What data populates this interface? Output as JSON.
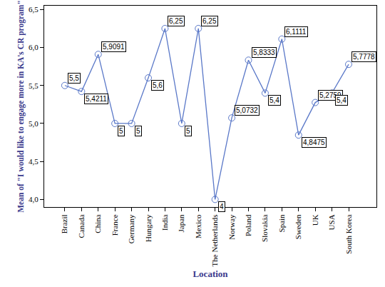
{
  "chart_data": {
    "type": "line",
    "x_label": "Location",
    "y_label": "Mean of \"I would like to engage more in KA's CR program\"",
    "categories": [
      "Brazil",
      "Canada",
      "China",
      "France",
      "Germany",
      "Hungary",
      "India",
      "Japan",
      "Mexico",
      "The Netherlands",
      "Norway",
      "Poland",
      "Slovakia",
      "Spain",
      "Sweden",
      "UK",
      "USA",
      "South Korea"
    ],
    "values": [
      5.5,
      5.4211,
      5.9091,
      5,
      5,
      5.6,
      6.25,
      5,
      6.25,
      4,
      5.0732,
      5.8333,
      5.4,
      6.1111,
      4.8475,
      5.2759,
      5.4,
      5.7778
    ],
    "value_labels": [
      "5,5",
      "5,4211",
      "5,9091",
      "5",
      "5",
      "5,6",
      "6,25",
      "5",
      "6,25",
      "4",
      "5,0732",
      "5,8333",
      "5,4",
      "6,1111",
      "4,8475",
      "5,2759",
      "5,4",
      "5,7778"
    ],
    "color": "#5a78c8",
    "marker": "circle-open",
    "line_style": "solid",
    "data_labels": true,
    "grid": false,
    "ylim": [
      3.9,
      6.55
    ],
    "yticks": [
      {
        "value": 4,
        "label": "4,0"
      },
      {
        "value": 4.5,
        "label": "4,5"
      },
      {
        "value": 5,
        "label": "5,0"
      },
      {
        "value": 5.5,
        "label": "5,5"
      },
      {
        "value": 6,
        "label": "6,0"
      },
      {
        "value": 6.5,
        "label": "6,5"
      }
    ]
  }
}
